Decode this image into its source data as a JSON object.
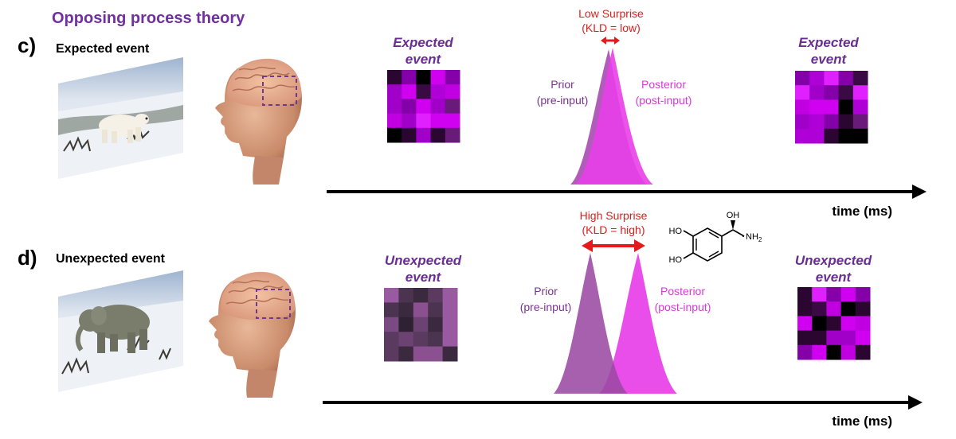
{
  "title": "Opposing process theory",
  "colors": {
    "title": "#7030a0",
    "prior": "#9b4aa3",
    "posterior": "#e83fe8",
    "surprise": "#e41a1c",
    "matrix_label": "#6a2d91",
    "axis": "#000000"
  },
  "panel_c": {
    "letter": "c)",
    "event_label": "Expected event",
    "image_icon": "polar-bear-photo",
    "head_icon": "human-head-brain",
    "left_matrix_label": [
      "Expected",
      "event"
    ],
    "right_matrix_label": [
      "Expected",
      "event"
    ],
    "surprise_label": [
      "Low Surprise",
      "(KLD = low)"
    ],
    "prior_label": [
      "Prior",
      "(pre-input)"
    ],
    "posterior_label": [
      "Posterior",
      "(post-input)"
    ],
    "axis_label": "time (ms)"
  },
  "panel_d": {
    "letter": "d)",
    "event_label": "Unexpected event",
    "image_icon": "elephant-in-snow-photo",
    "head_icon": "human-head-brain",
    "left_matrix_label": [
      "Unexpected",
      "event"
    ],
    "right_matrix_label": [
      "Unexpected",
      "event"
    ],
    "surprise_label": [
      "High Surprise",
      "(KLD = high)"
    ],
    "prior_label": [
      "Prior",
      "(pre-input)"
    ],
    "posterior_label": [
      "Posterior",
      "(post-input)"
    ],
    "axis_label": "time (ms)",
    "molecule_icon": "norepinephrine-structure",
    "molecule_labels": {
      "oh_top": "OH",
      "ho_upper": "HO",
      "ho_lower": "HO",
      "nh2": "NH",
      "nh2_sub": "2"
    }
  }
}
